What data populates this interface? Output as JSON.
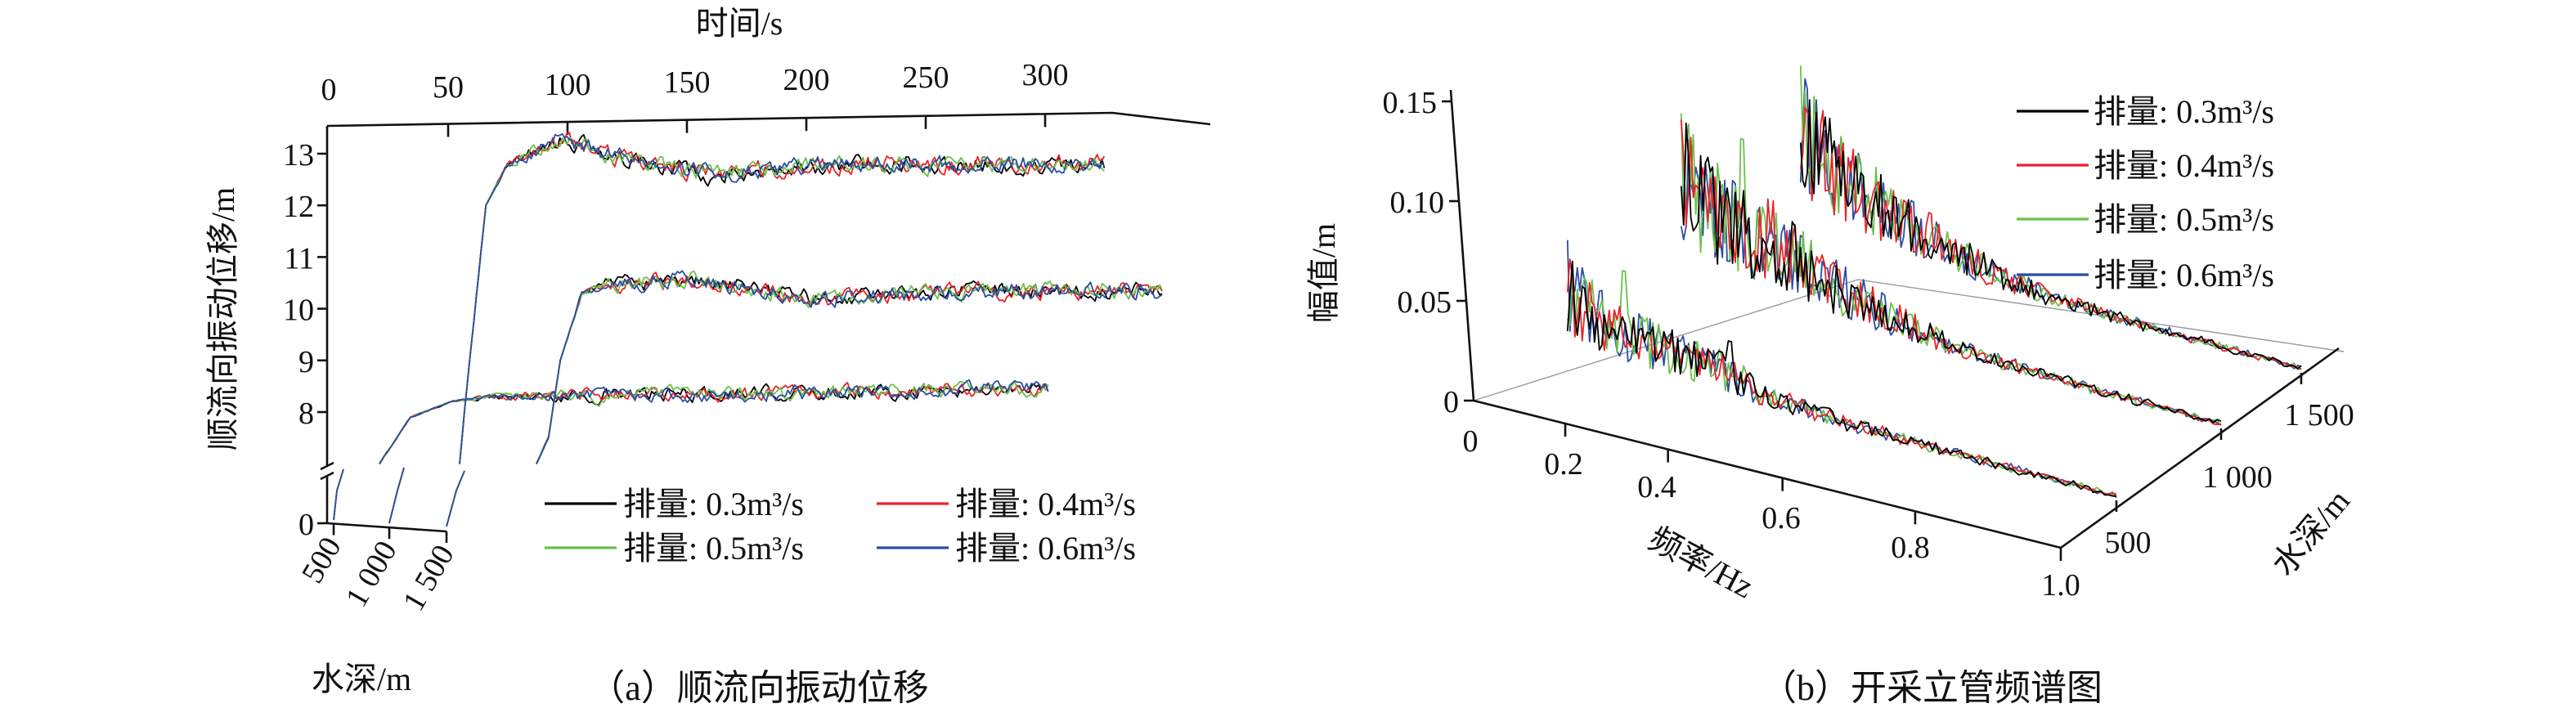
{
  "legend": [
    {
      "label": "排量: 0.3m³/s",
      "color": "#000000"
    },
    {
      "label": "排量: 0.4m³/s",
      "color": "#e8232a"
    },
    {
      "label": "排量: 0.5m³/s",
      "color": "#6cc04a"
    },
    {
      "label": "排量: 0.6m³/s",
      "color": "#2b4ea2"
    }
  ],
  "chart_data": [
    {
      "type": "line",
      "title": "（a）顺流向振动位移",
      "xlabel": "时间/s",
      "ylabel": "顺流向振动位移/m",
      "zlabel": "水深/m",
      "xticks": [
        "0",
        "50",
        "100",
        "150",
        "200",
        "250",
        "300"
      ],
      "xtick_values": [
        0,
        50,
        100,
        150,
        200,
        250,
        300
      ],
      "yticks": [
        "0",
        "8",
        "9",
        "10",
        "11",
        "12",
        "13"
      ],
      "ytick_values": [
        0,
        8,
        9,
        10,
        11,
        12,
        13
      ],
      "zticks": [
        "500",
        "1 000",
        "1 500"
      ],
      "xlim": [
        0,
        330
      ],
      "ylim": [
        0,
        13.5
      ],
      "y_axis_break": [
        0.5,
        7
      ],
      "grid": false,
      "legend_position": "bottom-right",
      "series": [
        {
          "depth": 500,
          "duration": 280,
          "noise": 0.13,
          "profile": [
            [
              0,
              7.0
            ],
            [
              13,
              7.9
            ],
            [
              30,
              8.2
            ],
            [
              47,
              8.3
            ],
            [
              150,
              8.35
            ],
            [
              280,
              8.45
            ]
          ]
        },
        {
          "depth": 1000,
          "duration": 270,
          "noise": 0.16,
          "profile": [
            [
              0,
              7.0
            ],
            [
              2,
              8.0
            ],
            [
              11,
              12.0
            ],
            [
              20,
              12.8
            ],
            [
              43,
              13.3
            ],
            [
              60,
              13.0
            ],
            [
              105,
              12.6
            ],
            [
              160,
              12.8
            ],
            [
              270,
              12.8
            ]
          ]
        },
        {
          "depth": 1500,
          "duration": 262,
          "noise": 0.15,
          "profile": [
            [
              0,
              7.0
            ],
            [
              5,
              7.5
            ],
            [
              10,
              9.0
            ],
            [
              19,
              10.3
            ],
            [
              30,
              10.5
            ],
            [
              66,
              10.55
            ],
            [
              117,
              10.2
            ],
            [
              180,
              10.35
            ],
            [
              262,
              10.35
            ]
          ]
        }
      ]
    },
    {
      "type": "line",
      "title": "（b）开采立管频谱图",
      "xlabel": "频率/Hz",
      "ylabel": "幅值/m",
      "zlabel": "水深/m",
      "xticks": [
        "0",
        "0.2",
        "0.4",
        "0.6",
        "0.8",
        "1.0"
      ],
      "yticks": [
        "0",
        "0.05",
        "0.10",
        "0.15"
      ],
      "ytick_values": [
        0,
        0.05,
        0.1,
        0.15
      ],
      "zticks": [
        "500",
        "1 000",
        "1 500"
      ],
      "xlim": [
        0,
        1.0
      ],
      "ylim": [
        0,
        0.15
      ],
      "grid": false,
      "legend_position": "top-right",
      "series": [
        {
          "depth": 500,
          "envelope": [
            [
              0.1,
              0.045
            ],
            [
              0.2,
              0.03
            ],
            [
              0.3,
              0.025
            ],
            [
              0.4,
              0.022
            ],
            [
              0.5,
              0.012
            ],
            [
              0.6,
              0.009
            ],
            [
              0.8,
              0.005
            ],
            [
              1.0,
              0.002
            ]
          ],
          "peaks": [
            {
              "flow": 3,
              "f": 0.1,
              "amp": 0.067
            },
            {
              "flow": 2,
              "f": 0.22,
              "amp": 0.058
            },
            {
              "flow": 0,
              "f": 0.42,
              "amp": 0.035
            }
          ]
        },
        {
          "depth": 1000,
          "envelope": [
            [
              0.1,
              0.07
            ],
            [
              0.2,
              0.05
            ],
            [
              0.3,
              0.045
            ],
            [
              0.4,
              0.03
            ],
            [
              0.5,
              0.02
            ],
            [
              0.6,
              0.012
            ],
            [
              0.8,
              0.006
            ],
            [
              1.0,
              0.002
            ]
          ],
          "peaks": [
            {
              "flow": 2,
              "f": 0.1,
              "amp": 0.096
            },
            {
              "flow": 2,
              "f": 0.23,
              "amp": 0.09
            },
            {
              "flow": 1,
              "f": 0.12,
              "amp": 0.085
            }
          ]
        },
        {
          "depth": 1500,
          "envelope": [
            [
              0.1,
              0.07
            ],
            [
              0.2,
              0.045
            ],
            [
              0.3,
              0.035
            ],
            [
              0.4,
              0.025
            ],
            [
              0.5,
              0.015
            ],
            [
              0.6,
              0.01
            ],
            [
              0.8,
              0.005
            ],
            [
              1.0,
              0.002
            ]
          ],
          "peaks": [
            {
              "flow": 2,
              "f": 0.1,
              "amp": 0.095
            },
            {
              "flow": 0,
              "f": 0.2,
              "amp": 0.057
            }
          ]
        }
      ]
    }
  ]
}
